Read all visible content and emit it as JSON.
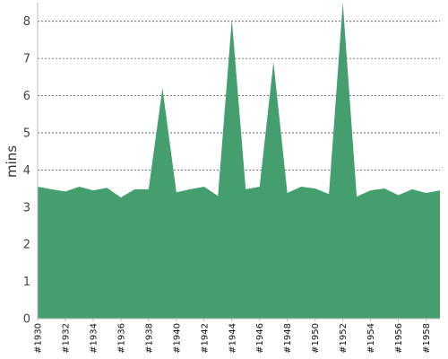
{
  "chart_data": {
    "type": "area",
    "ylabel": "mins",
    "xlabel": "",
    "title": "",
    "ylim": [
      0,
      8.5
    ],
    "yticks": [
      0,
      1,
      2,
      3,
      4,
      5,
      6,
      7,
      8
    ],
    "grid": true,
    "color": "#449e6e",
    "x_tick_labels": [
      "#1930",
      "#1932",
      "#1934",
      "#1936",
      "#1938",
      "#1940",
      "#1942",
      "#1944",
      "#1946",
      "#1948",
      "#1950",
      "#1952",
      "#1954",
      "#1956",
      "#1958"
    ],
    "series": [
      {
        "x": [
          1930,
          1931,
          1932,
          1933,
          1934,
          1935,
          1936,
          1937,
          1938,
          1939,
          1940,
          1941,
          1942,
          1943,
          1944,
          1945,
          1946,
          1947,
          1948,
          1949,
          1950,
          1951,
          1952,
          1953,
          1954,
          1955,
          1956,
          1957,
          1958,
          1959
        ],
        "values": [
          3.55,
          3.48,
          3.42,
          3.55,
          3.45,
          3.52,
          3.26,
          3.48,
          3.48,
          6.2,
          3.4,
          3.48,
          3.55,
          3.3,
          8.05,
          3.48,
          3.55,
          6.9,
          3.38,
          3.55,
          3.5,
          3.35,
          8.5,
          3.28,
          3.45,
          3.5,
          3.32,
          3.48,
          3.38,
          3.45
        ]
      }
    ]
  }
}
